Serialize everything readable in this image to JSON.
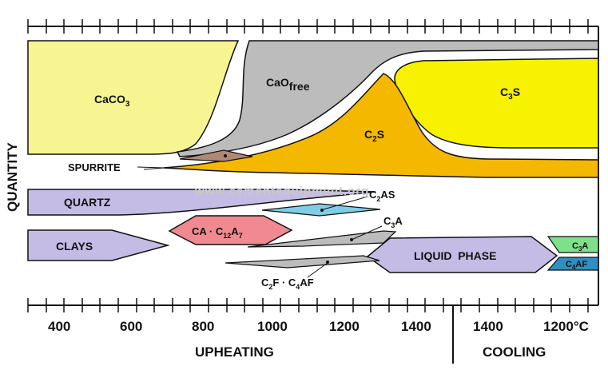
{
  "diagram": {
    "axis": {
      "y_label": "QUANTITY",
      "x_ticks_upheating": [
        "400",
        "600",
        "800",
        "1000",
        "1200",
        "1400"
      ],
      "x_ticks_cooling": [
        "1400",
        "1200°C"
      ],
      "section_upheating": "UPHEATING",
      "section_cooling": "COOLING"
    },
    "watermark": "www.cementequipment.org",
    "phases": {
      "caco3": {
        "text": "CaCO",
        "sub": "3",
        "color": "#f7f592"
      },
      "cao_free": {
        "text": "CaO",
        "sub": "free",
        "color": "#bcbcbc"
      },
      "c3s": {
        "text": "C",
        "sub": "3",
        "text2": "S",
        "color": "#f6f200"
      },
      "c2s": {
        "text": "C",
        "sub": "2",
        "text2": "S",
        "color": "#f5b800"
      },
      "spurrite": {
        "text": "SPURRITE",
        "color": "#b08878"
      },
      "quartz": {
        "text": "QUARTZ",
        "color": "#c5bce6"
      },
      "c2as": {
        "text": "C",
        "sub": "2",
        "text2": "AS",
        "color": "#7fcde6"
      },
      "ca_c12a7": {
        "text": "CA · C",
        "sub": "12",
        "text2": "A",
        "sub2": "7",
        "color": "#f08a90"
      },
      "c3a_upheating": {
        "text": "C",
        "sub": "3",
        "text2": "A",
        "color": "#bcbcbc"
      },
      "clays": {
        "text": "CLAYS",
        "color": "#c5bce6"
      },
      "liquid_phase": {
        "text": "LIQUID  PHASE",
        "color": "#c5bce6"
      },
      "c2f_c4af": {
        "text": "C",
        "sub": "2",
        "text2": "F · C",
        "sub2": "4",
        "text3": "AF",
        "color": "#bcbcbc"
      },
      "c3a_cooling": {
        "text": "C",
        "sub": "3",
        "text2": "A",
        "color": "#7fe08a"
      },
      "c4af_cooling": {
        "text": "C",
        "sub": "4",
        "text2": "AF",
        "color": "#2f8fc0"
      }
    }
  }
}
